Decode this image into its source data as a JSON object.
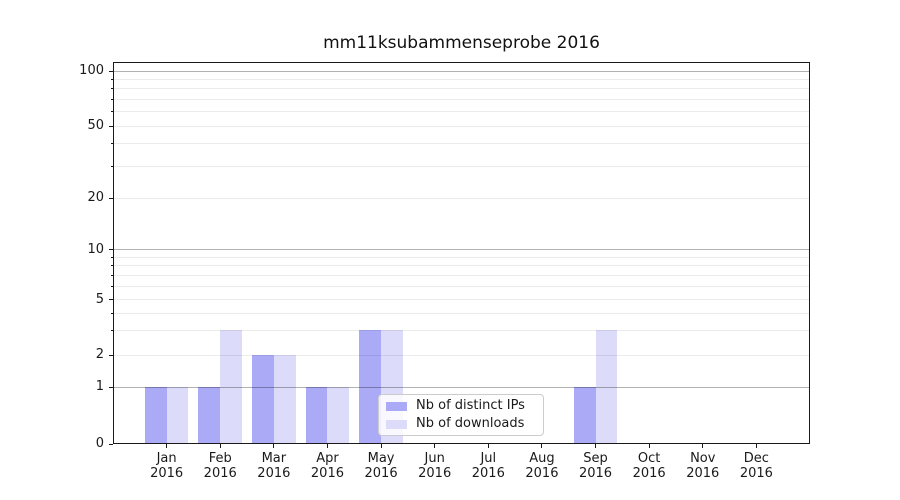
{
  "chart_data": {
    "type": "bar",
    "title": "mm11ksubammenseprobe 2016",
    "categories": [
      "Jan",
      "Feb",
      "Mar",
      "Apr",
      "May",
      "Jun",
      "Jul",
      "Aug",
      "Sep",
      "Oct",
      "Nov",
      "Dec"
    ],
    "x_tick_labels": [
      {
        "month": "Jan",
        "year": "2016"
      },
      {
        "month": "Feb",
        "year": "2016"
      },
      {
        "month": "Mar",
        "year": "2016"
      },
      {
        "month": "Apr",
        "year": "2016"
      },
      {
        "month": "May",
        "year": "2016"
      },
      {
        "month": "Jun",
        "year": "2016"
      },
      {
        "month": "Jul",
        "year": "2016"
      },
      {
        "month": "Aug",
        "year": "2016"
      },
      {
        "month": "Sep",
        "year": "2016"
      },
      {
        "month": "Oct",
        "year": "2016"
      },
      {
        "month": "Nov",
        "year": "2016"
      },
      {
        "month": "Dec",
        "year": "2016"
      }
    ],
    "series": [
      {
        "name": "Nb of distinct IPs",
        "color": "#aaaaf6",
        "values": [
          1,
          1,
          2,
          1,
          3,
          0,
          0,
          0,
          1,
          0,
          0,
          0
        ]
      },
      {
        "name": "Nb of downloads",
        "color": "#dcdcfa",
        "values": [
          1,
          3,
          2,
          1,
          3,
          0,
          0,
          0,
          3,
          0,
          0,
          0
        ]
      }
    ],
    "y_axis": {
      "scale": "symlog",
      "tick_values": [
        0,
        1,
        2,
        5,
        10,
        20,
        50,
        100
      ],
      "tick_labels": [
        "0",
        "1",
        "2",
        "5",
        "10",
        "20",
        "50",
        "100"
      ],
      "major_gridline_values": [
        1,
        10,
        100
      ],
      "minor_gridline_values": [
        2,
        3,
        4,
        5,
        6,
        7,
        8,
        9,
        20,
        30,
        40,
        50,
        60,
        70,
        80,
        90
      ],
      "ylim": [
        0,
        112
      ]
    },
    "grid": "horizontal major+minor, drawn above bars",
    "legend": {
      "position": "lower center",
      "items": [
        "Nb of distinct IPs",
        "Nb of downloads"
      ]
    }
  }
}
